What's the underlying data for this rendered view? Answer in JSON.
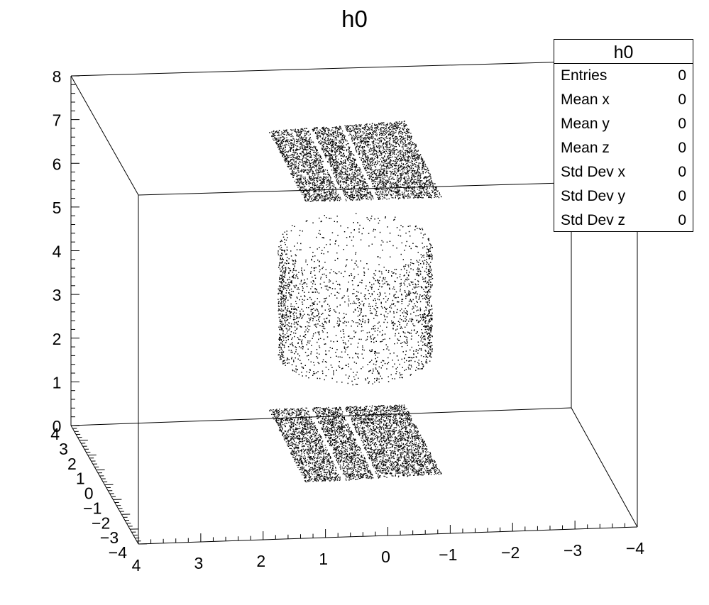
{
  "chart_data": {
    "type": "scatter",
    "title": "h0",
    "xlim": [
      -4,
      4
    ],
    "ylim": [
      -4,
      4
    ],
    "zlim": [
      0,
      8
    ],
    "x_ticks": [
      "4",
      "3",
      "2",
      "1",
      "0",
      "−1",
      "−2",
      "−3",
      "−4"
    ],
    "y_ticks": [
      "4",
      "3",
      "2",
      "1",
      "0",
      "−1",
      "−2",
      "−3",
      "−4"
    ],
    "z_ticks": [
      "0",
      "1",
      "2",
      "3",
      "4",
      "5",
      "6",
      "7",
      "8"
    ],
    "series": [
      {
        "shape": "upper-sheet",
        "z_range": [
          5.2,
          7.0
        ]
      },
      {
        "shape": "middle-cylinder",
        "z_range": [
          1.5,
          4.5
        ]
      },
      {
        "shape": "lower-sheet",
        "z_range": [
          -0.6,
          0.4
        ]
      }
    ],
    "legend_position": "top-right",
    "grid": false
  },
  "stats": {
    "title": "h0",
    "rows": [
      {
        "label": "Entries",
        "value": "0"
      },
      {
        "label": "Mean x",
        "value": "0"
      },
      {
        "label": "Mean y",
        "value": "0"
      },
      {
        "label": "Mean z",
        "value": "0"
      },
      {
        "label": "Std Dev x",
        "value": "0"
      },
      {
        "label": "Std Dev y",
        "value": "0"
      },
      {
        "label": "Std Dev z",
        "value": "0"
      }
    ]
  }
}
